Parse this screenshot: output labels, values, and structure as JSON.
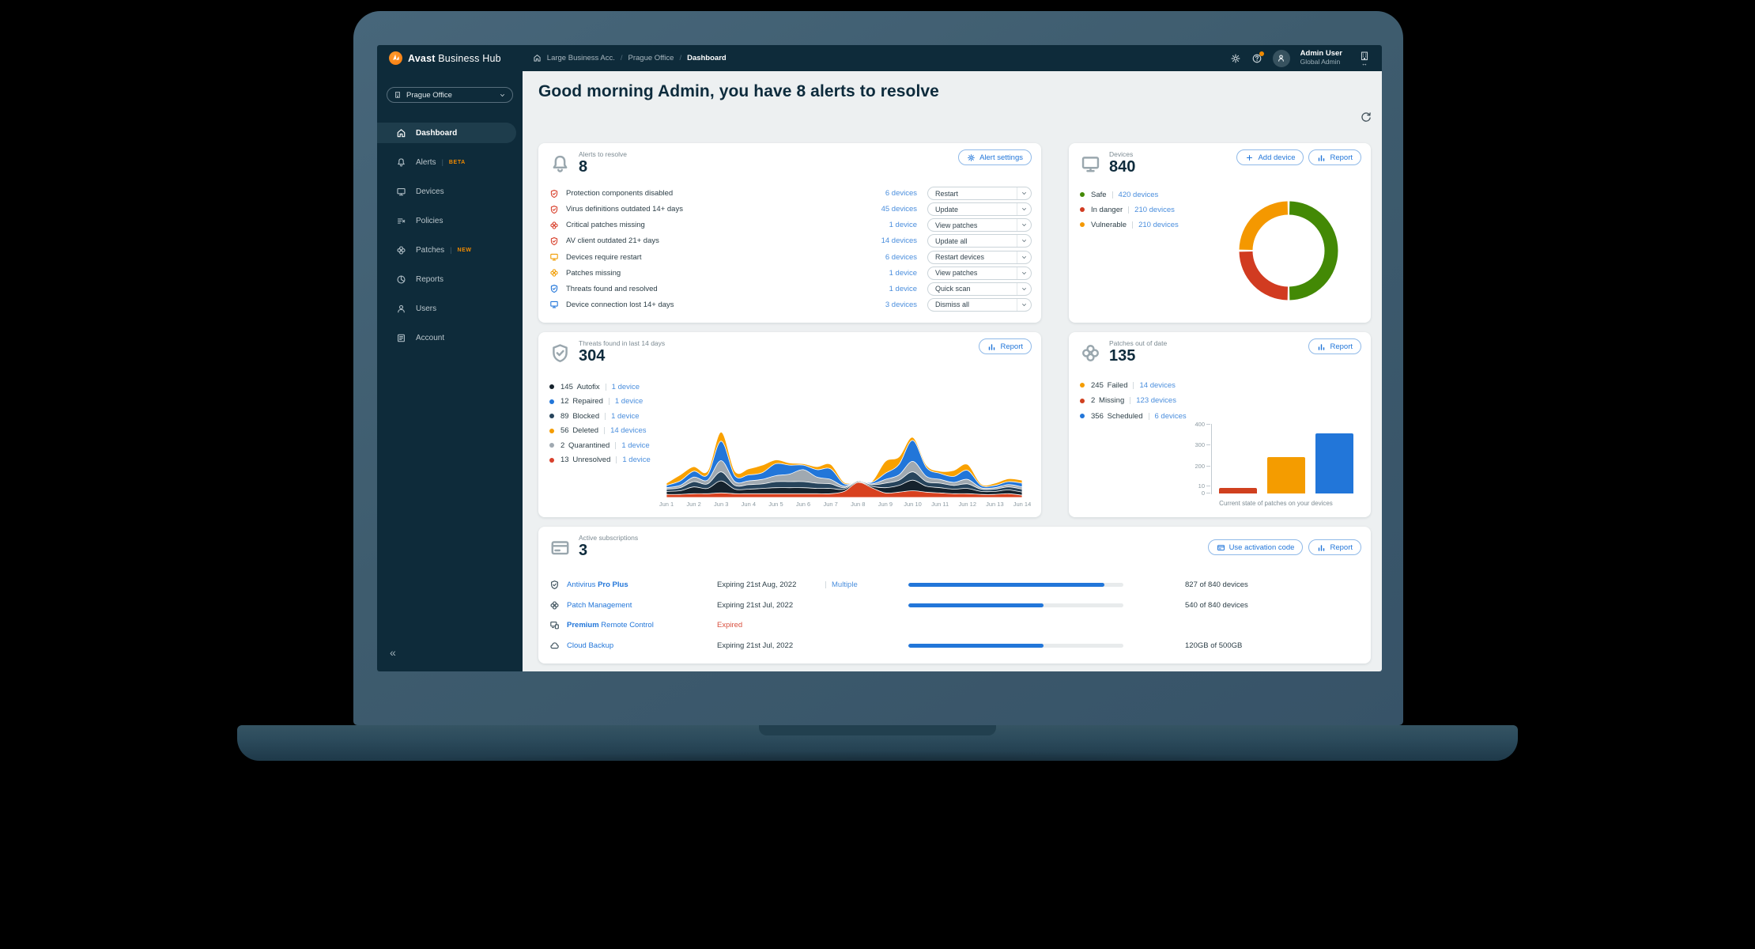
{
  "topbar": {
    "brand_bold": "Avast",
    "brand_rest": " Business Hub",
    "breadcrumb": [
      "Large Business Acc.",
      "Prague Office",
      "Dashboard"
    ],
    "user_name": "Admin User",
    "user_role": "Global Admin"
  },
  "sidebar": {
    "org_selector": "Prague Office",
    "collapse_glyph": "«",
    "items": [
      {
        "icon": "home",
        "label": "Dashboard",
        "active": true
      },
      {
        "icon": "bell",
        "label": "Alerts",
        "badge": "BETA"
      },
      {
        "icon": "monitor",
        "label": "Devices"
      },
      {
        "icon": "policies",
        "label": "Policies"
      },
      {
        "icon": "patch",
        "label": "Patches",
        "badge": "NEW"
      },
      {
        "icon": "reports",
        "label": "Reports"
      },
      {
        "icon": "users",
        "label": "Users"
      },
      {
        "icon": "account",
        "label": "Account"
      }
    ]
  },
  "greeting": "Good morning Admin, you have 8 alerts to resolve",
  "alerts_card": {
    "title": "Alerts to resolve",
    "count": "8",
    "settings_button": "Alert settings",
    "rows": [
      {
        "icon": "shieldcheck",
        "color": "#d8402c",
        "label": "Protection components disabled",
        "devices": "6 devices",
        "action": "Restart"
      },
      {
        "icon": "shieldcheck",
        "color": "#d8402c",
        "label": "Virus definitions outdated 14+ days",
        "devices": "45 devices",
        "action": "Update"
      },
      {
        "icon": "patch",
        "color": "#d8402c",
        "label": "Critical patches missing",
        "devices": "1 device",
        "action": "View patches"
      },
      {
        "icon": "shieldcheck",
        "color": "#d8402c",
        "label": "AV client outdated 21+ days",
        "devices": "14 devices",
        "action": "Update all"
      },
      {
        "icon": "monitor",
        "color": "#f09c00",
        "label": "Devices require restart",
        "devices": "6 devices",
        "action": "Restart devices"
      },
      {
        "icon": "patch",
        "color": "#f09c00",
        "label": "Patches missing",
        "devices": "1 device",
        "action": "View patches"
      },
      {
        "icon": "shieldcheck",
        "color": "#2276d9",
        "label": "Threats found and resolved",
        "devices": "1 device",
        "action": "Quick scan"
      },
      {
        "icon": "monitor",
        "color": "#2276d9",
        "label": "Device connection lost 14+ days",
        "devices": "3 devices",
        "action": "Dismiss all"
      }
    ]
  },
  "devices_card": {
    "title": "Devices",
    "count": "840",
    "add_button": "Add device",
    "report_button": "Report",
    "legend": [
      {
        "label": "Safe",
        "link": "420 devices",
        "color": "#438905"
      },
      {
        "label": "In danger",
        "link": "210 devices",
        "color": "#d13b21"
      },
      {
        "label": "Vulnerable",
        "link": "210 devices",
        "color": "#f49800"
      }
    ]
  },
  "threats_card": {
    "title": "Threats found in last 14 days",
    "count": "304",
    "report_button": "Report",
    "legend": [
      {
        "value": "145",
        "label": "Autofix",
        "link": "1 device",
        "color": "#15222d"
      },
      {
        "value": "12",
        "label": "Repaired",
        "link": "1 device",
        "color": "#2276d9"
      },
      {
        "value": "89",
        "label": "Blocked",
        "link": "1 device",
        "color": "#27445c"
      },
      {
        "value": "56",
        "label": "Deleted",
        "link": "14 devices",
        "color": "#f49c00"
      },
      {
        "value": "2",
        "label": "Quarantined",
        "link": "1 device",
        "color": "#a0a9b1"
      },
      {
        "value": "13",
        "label": "Unresolved",
        "link": "1 device",
        "color": "#d8402c"
      }
    ]
  },
  "patches_card": {
    "title": "Patches out of date",
    "count": "135",
    "report_button": "Report",
    "legend": [
      {
        "value": "245",
        "label": "Failed",
        "link": "14 devices",
        "color": "#f49c00"
      },
      {
        "value": "2",
        "label": "Missing",
        "link": "123 devices",
        "color": "#d0401f"
      },
      {
        "value": "356",
        "label": "Scheduled",
        "link": "6 devices",
        "color": "#2276d9"
      }
    ]
  },
  "subscriptions_card": {
    "title": "Active subscriptions",
    "count": "3",
    "activation_button": "Use activation code",
    "report_button": "Report",
    "rows": [
      {
        "icon": "shieldcheck",
        "name_parts": [
          {
            "text": "Antivirus ",
            "bold": false
          },
          {
            "text": "Pro Plus",
            "bold": true
          }
        ],
        "expiry": "Expiring 21st Aug, 2022",
        "expired": false,
        "extra_link": "Multiple",
        "progress_pct": 91,
        "usage": "827 of 840 devices"
      },
      {
        "icon": "patch",
        "name_parts": [
          {
            "text": "Patch Management",
            "bold": false
          }
        ],
        "expiry": "Expiring 21st Jul, 2022",
        "expired": false,
        "extra_link": null,
        "progress_pct": 63,
        "usage": "540 of 840 devices"
      },
      {
        "icon": "remote",
        "name_parts": [
          {
            "text": "Premium",
            "bold": true
          },
          {
            "text": " Remote Control",
            "bold": false
          }
        ],
        "expiry": "Expired",
        "expired": true,
        "extra_link": null,
        "progress_pct": null,
        "usage": ""
      },
      {
        "icon": "cloud",
        "name_parts": [
          {
            "text": "Cloud Backup",
            "bold": false
          }
        ],
        "expiry": "Expiring 21st Jul, 2022",
        "expired": false,
        "extra_link": null,
        "progress_pct": 63,
        "usage": "120GB of 500GB"
      }
    ]
  },
  "chart_data": [
    {
      "id": "devices-donut",
      "type": "pie",
      "title": "Devices",
      "donut": true,
      "total": 840,
      "start_angle_deg": 0,
      "direction": "clockwise",
      "segments": [
        {
          "label": "Safe",
          "value": 420,
          "color": "#438905"
        },
        {
          "label": "In danger",
          "value": 210,
          "color": "#d13b21"
        },
        {
          "label": "Vulnerable",
          "value": 210,
          "color": "#f49800"
        }
      ]
    },
    {
      "id": "threats-area",
      "type": "area",
      "stacked": true,
      "title": "Threats found in last 14 days",
      "grid": false,
      "legend_position": "left",
      "x_labels": [
        "Jun 1",
        "Jun 2",
        "Jun 3",
        "Jun 4",
        "Jun 5",
        "Jun 6",
        "Jun 7",
        "Jun 8",
        "Jun 9",
        "Jun 10",
        "Jun 11",
        "Jun 12",
        "Jun 13",
        "Jun 14"
      ],
      "x": [
        1,
        1.5,
        2,
        2.5,
        3,
        3.5,
        4,
        4.5,
        5,
        5.5,
        6,
        6.5,
        7,
        7.5,
        8,
        8.5,
        9,
        9.5,
        10,
        10.5,
        11,
        11.5,
        12,
        12.5,
        13,
        13.5,
        14
      ],
      "series": [
        {
          "name": "Unresolved",
          "color": "#d8411f",
          "values": [
            4,
            4,
            5,
            5,
            6,
            5,
            5,
            5,
            5,
            5,
            5,
            5,
            5,
            8,
            20,
            13,
            6,
            7,
            9,
            7,
            6,
            5,
            5,
            4,
            4,
            5,
            3
          ]
        },
        {
          "name": "Autofix",
          "color": "#15222d",
          "values": [
            4,
            5,
            9,
            7,
            16,
            6,
            6,
            7,
            8,
            8,
            8,
            7,
            7,
            3,
            1,
            2,
            7,
            9,
            14,
            8,
            7,
            6,
            7,
            4,
            4,
            5,
            4
          ]
        },
        {
          "name": "Blocked",
          "color": "#27445c",
          "values": [
            3,
            4,
            7,
            6,
            12,
            5,
            6,
            6,
            8,
            8,
            8,
            7,
            6,
            2,
            1,
            2,
            6,
            7,
            11,
            6,
            6,
            5,
            6,
            3,
            3,
            4,
            4
          ]
        },
        {
          "name": "Quarantined",
          "color": "#a0a9b1",
          "values": [
            2,
            3,
            6,
            5,
            15,
            5,
            5,
            6,
            8,
            10,
            16,
            8,
            6,
            2,
            0,
            1,
            5,
            7,
            14,
            7,
            5,
            4,
            6,
            2,
            2,
            3,
            3
          ]
        },
        {
          "name": "Repaired",
          "color": "#2276d9",
          "values": [
            3,
            6,
            8,
            7,
            26,
            8,
            8,
            9,
            16,
            12,
            6,
            10,
            14,
            3,
            0,
            2,
            8,
            14,
            28,
            12,
            8,
            8,
            12,
            3,
            3,
            4,
            5
          ]
        },
        {
          "name": "Deleted",
          "color": "#f9a100",
          "values": [
            3,
            8,
            6,
            5,
            12,
            6,
            8,
            10,
            5,
            3,
            2,
            4,
            6,
            2,
            0,
            1,
            16,
            10,
            4,
            3,
            3,
            8,
            8,
            2,
            3,
            4,
            4
          ]
        }
      ]
    },
    {
      "id": "patches-bar",
      "type": "bar",
      "categories": [
        "Missing",
        "Failed",
        "Scheduled"
      ],
      "values": [
        2,
        245,
        356
      ],
      "colors": [
        "#d0401f",
        "#f49c00",
        "#2276d9"
      ],
      "yticks": [
        400,
        300,
        200,
        10,
        0
      ],
      "scale_points": [
        [
          0,
          0
        ],
        [
          10,
          9
        ],
        [
          200,
          34
        ],
        [
          300,
          61
        ],
        [
          400,
          87
        ]
      ],
      "ylim": [
        0,
        400
      ],
      "grid": false,
      "xlabel": "Current state of patches on your devices"
    }
  ]
}
